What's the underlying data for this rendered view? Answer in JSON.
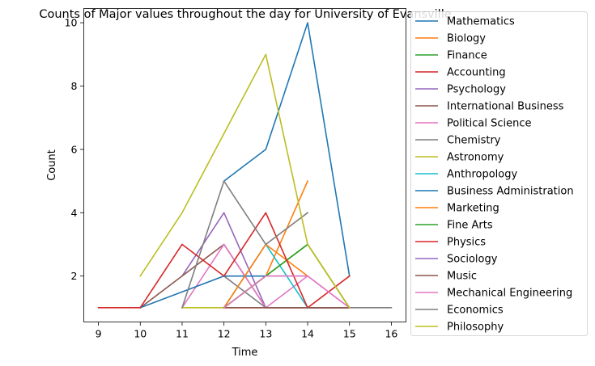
{
  "chart_data": {
    "type": "line",
    "title": "Counts of Major values throughout the day for University of Evansville",
    "xlabel": "Time",
    "ylabel": "Count",
    "xlim": [
      8.65,
      16.35
    ],
    "ylim": [
      0.55,
      10.45
    ],
    "xticks": [
      9,
      10,
      11,
      12,
      13,
      14,
      15,
      16
    ],
    "yticks": [
      2,
      4,
      6,
      8,
      10
    ],
    "grid": false,
    "legend_position": "right, outside plot",
    "series": [
      {
        "name": "Mathematics",
        "color": "#1f77b4",
        "x": [
          12,
          13,
          14,
          15
        ],
        "y": [
          5,
          6,
          10,
          2
        ]
      },
      {
        "name": "Biology",
        "color": "#ff7f0e",
        "x": [
          12,
          13,
          14
        ],
        "y": [
          1,
          2,
          5
        ]
      },
      {
        "name": "Finance",
        "color": "#2ca02c",
        "x": [
          12,
          13,
          14,
          15
        ],
        "y": [
          1,
          2,
          3,
          1
        ]
      },
      {
        "name": "Accounting",
        "color": "#d62728",
        "x": [
          12,
          13,
          14,
          15
        ],
        "y": [
          1,
          1,
          1,
          2
        ]
      },
      {
        "name": "Psychology",
        "color": "#9467bd",
        "x": [
          11,
          12,
          13
        ],
        "y": [
          2,
          4,
          1
        ]
      },
      {
        "name": "International Business",
        "color": "#8c564b",
        "x": [
          10,
          11,
          12,
          13,
          14,
          15
        ],
        "y": [
          1,
          2,
          3,
          1,
          1,
          1
        ]
      },
      {
        "name": "Political Science",
        "color": "#e377c2",
        "x": [
          11,
          12,
          13,
          14,
          15
        ],
        "y": [
          1,
          3,
          1,
          2,
          1
        ]
      },
      {
        "name": "Chemistry",
        "color": "#7f7f7f",
        "x": [
          12,
          13,
          14,
          15,
          16
        ],
        "y": [
          2,
          1,
          1,
          1,
          1
        ]
      },
      {
        "name": "Astronomy",
        "color": "#bcbd22",
        "x": [
          11,
          12,
          13,
          14,
          15
        ],
        "y": [
          1,
          1,
          2,
          3,
          1
        ]
      },
      {
        "name": "Anthropology",
        "color": "#17becf",
        "x": [
          12,
          13,
          14,
          15
        ],
        "y": [
          1,
          3,
          1,
          1
        ]
      },
      {
        "name": "Business Administration",
        "color": "#1f77b4",
        "x": [
          10,
          12,
          13,
          14
        ],
        "y": [
          1,
          2,
          2,
          2
        ]
      },
      {
        "name": "Marketing",
        "color": "#ff7f0e",
        "x": [
          12,
          13,
          14
        ],
        "y": [
          1,
          3,
          2
        ]
      },
      {
        "name": "Fine Arts",
        "color": "#2ca02c",
        "x": [
          12,
          13,
          14
        ],
        "y": [
          1,
          2,
          3
        ]
      },
      {
        "name": "Physics",
        "color": "#d62728",
        "x": [
          9,
          10,
          11,
          12,
          13,
          14,
          15
        ],
        "y": [
          1,
          1,
          3,
          2,
          4,
          1,
          1
        ]
      },
      {
        "name": "Sociology",
        "color": "#9467bd",
        "x": [
          14,
          15
        ],
        "y": [
          1,
          1
        ]
      },
      {
        "name": "Music",
        "color": "#8c564b",
        "x": [
          12,
          13,
          14,
          15
        ],
        "y": [
          1,
          1,
          1,
          1
        ]
      },
      {
        "name": "Mechanical Engineering",
        "color": "#e377c2",
        "x": [
          12,
          13,
          14,
          15
        ],
        "y": [
          1,
          2,
          2,
          1
        ]
      },
      {
        "name": "Economics",
        "color": "#7f7f7f",
        "x": [
          11,
          12,
          13,
          14
        ],
        "y": [
          1,
          5,
          3,
          4
        ]
      },
      {
        "name": "Philosophy",
        "color": "#bcbd22",
        "x": [
          10,
          11,
          13,
          14,
          15
        ],
        "y": [
          2,
          4,
          9,
          3,
          1
        ]
      }
    ]
  }
}
